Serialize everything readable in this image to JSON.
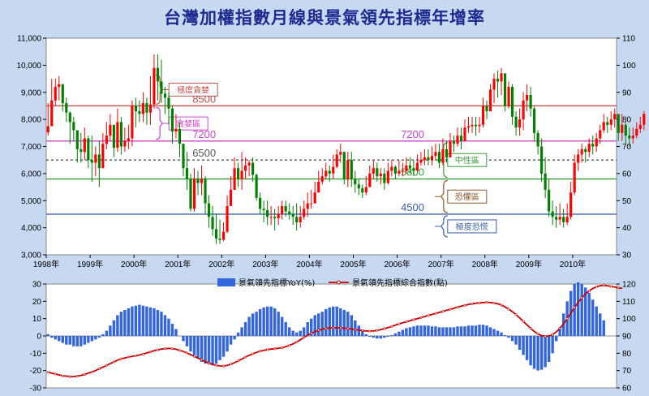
{
  "title": "台灣加權指數月線與景氣領先指標年增率",
  "colors": {
    "background": "#c6d9f1",
    "plot_bg": "#ffffff",
    "up_candle": "#ff0000",
    "down_candle": "#008000",
    "line_8500": "#c0504d",
    "line_7200": "#cc44cc",
    "line_6500": "#555555",
    "line_5800": "#3a9a3a",
    "line_4500": "#3b5ea8",
    "bar": "#3366dd",
    "composite": "#cc0000"
  },
  "chart_data": [
    {
      "type": "candlestick",
      "left_axis": {
        "range": [
          3000,
          11000
        ],
        "ticks": [
          "3,000",
          "4,000",
          "5,000",
          "6,000",
          "7,000",
          "8,000",
          "9,000",
          "10,000",
          "11,000"
        ]
      },
      "right_axis": {
        "range": [
          30,
          110
        ],
        "ticks": [
          "30",
          "40",
          "50",
          "60",
          "70",
          "80",
          "90",
          "100",
          "110"
        ]
      },
      "x_ticks": [
        "1998年",
        "1999年",
        "2000年",
        "2001年",
        "2002年",
        "2003年",
        "2004年",
        "2005年",
        "2006年",
        "2007年",
        "2008年",
        "2009年",
        "2010年"
      ],
      "x_range": [
        1998,
        2011
      ],
      "levels": [
        {
          "value": 8500,
          "label": "8500",
          "color_key": "line_8500",
          "dashed": false,
          "label_x": 2001.6
        },
        {
          "value": 7200,
          "label": "7200",
          "color_key": "line_7200",
          "dashed": false,
          "label_x": 2001.6
        },
        {
          "value": 7200,
          "label": "7200",
          "color_key": "line_7200",
          "dashed": false,
          "label_x": 2006.35
        },
        {
          "value": 6500,
          "label": "6500",
          "color_key": "line_6500",
          "dashed": true,
          "label_x": 2001.6
        },
        {
          "value": 5800,
          "label": "5800",
          "color_key": "line_5800",
          "dashed": false,
          "label_x": 2006.35
        },
        {
          "value": 4500,
          "label": "4500",
          "color_key": "line_4500",
          "dashed": false,
          "label_x": 2006.35
        }
      ],
      "zones": [
        {
          "label": "極度貪婪",
          "from": 8500,
          "to": 9700,
          "color": "#c0504d",
          "side": "left",
          "x": 2000.5
        },
        {
          "label": "貪婪區",
          "from": 7200,
          "to": 8500,
          "color": "#cc44cc",
          "side": "left",
          "x": 2000.5
        },
        {
          "label": "中性區",
          "from": 5800,
          "to": 7200,
          "color": "#3a9a3a",
          "side": "right",
          "x": 2007.15
        },
        {
          "label": "恐懼區",
          "from": 4500,
          "to": 5800,
          "color": "#8b5a2b",
          "side": "right",
          "x": 2007.15
        },
        {
          "label": "極度恐慌",
          "from": 3600,
          "to": 4500,
          "color": "#3b5ea8",
          "side": "right",
          "x": 2007.15
        }
      ],
      "monthly_close": [
        7750,
        8700,
        9200,
        9300,
        8600,
        8250,
        7900,
        7600,
        6900,
        6800,
        7300,
        6500,
        6400,
        6700,
        6200,
        7100,
        7400,
        7800,
        6950,
        7900,
        7000,
        7200,
        7300,
        8500,
        8300,
        8200,
        8600,
        8250,
        8550,
        9900,
        9400,
        8950,
        8800,
        8400,
        7550,
        7650,
        7100,
        6200,
        5800,
        4700,
        5800,
        5650,
        5800,
        4900,
        4400,
        3950,
        3600,
        3550,
        3850,
        4800,
        5400,
        6200,
        5800,
        6100,
        6300,
        6400,
        5950,
        5100,
        4700,
        4650,
        4400,
        4400,
        4350,
        4500,
        4800,
        4600,
        4500,
        4400,
        4200,
        4400,
        4700,
        4900,
        4900,
        5300,
        5700,
        5900,
        6100,
        6000,
        6250,
        6700,
        6800,
        5800,
        6500,
        5800,
        5600,
        5450,
        5300,
        5500,
        6000,
        6200,
        5900,
        6000,
        5650,
        6100,
        6250,
        6000,
        6100,
        6100,
        6300,
        6200,
        6100,
        6400,
        6500,
        6600,
        6500,
        6650,
        6800,
        6400,
        6900,
        6600,
        7200,
        7100,
        7400,
        7200,
        7700,
        7750,
        7800,
        7750,
        7800,
        8500,
        8300,
        9100,
        9500,
        9400,
        9700,
        8500,
        9200,
        8100,
        7700,
        8000,
        8700,
        8900,
        8400,
        7500,
        7000,
        6000,
        5400,
        4600,
        4400,
        4300,
        4400,
        4200,
        4400,
        5300,
        6400,
        6700,
        6900,
        6800,
        7100,
        7000,
        7300,
        7600,
        7900,
        7800,
        8000,
        8200,
        7500,
        7800,
        7400,
        7300,
        7400,
        7650,
        7800,
        8200
      ],
      "monthly_high": [
        8600,
        9500,
        9500,
        9600,
        9300,
        8800,
        8300,
        8100,
        7500,
        7500,
        7700,
        7400,
        7400,
        7000,
        7200,
        7500,
        7900,
        8200,
        7800,
        8400,
        8100,
        7700,
        7800,
        8700,
        8800,
        8700,
        9000,
        8800,
        9600,
        10400,
        10400,
        10200,
        9200,
        9000,
        8500,
        8200,
        7900,
        7100,
        6800,
        6000,
        6200,
        6100,
        6300,
        5900,
        5200,
        4800,
        4500,
        4300,
        4200,
        5200,
        5900,
        6600,
        6400,
        6800,
        6600,
        6500,
        6600,
        6000,
        5300,
        5000,
        5000,
        4800,
        4700,
        4800,
        5000,
        5000,
        4900,
        4800,
        4900,
        4800,
        5000,
        5300,
        5400,
        5700,
        6100,
        6200,
        6400,
        6300,
        6700,
        6900,
        7100,
        6800,
        6800,
        6800,
        6100,
        5800,
        5600,
        5900,
        6300,
        6500,
        6400,
        6200,
        6200,
        6400,
        6500,
        6300,
        6500,
        6400,
        6600,
        6600,
        6500,
        6700,
        6800,
        6900,
        6900,
        7000,
        7100,
        7100,
        7300,
        7200,
        7500,
        7400,
        7700,
        7700,
        8000,
        8100,
        8100,
        8100,
        8100,
        8800,
        8700,
        9300,
        9700,
        9800,
        9900,
        9600,
        9400,
        9300,
        8300,
        8400,
        9000,
        9300,
        9200,
        8500,
        7600,
        7300,
        6600,
        5800,
        5000,
        4800,
        4900,
        4700,
        4900,
        5700,
        6700,
        6900,
        7100,
        7000,
        7300,
        7400,
        7500,
        7800,
        8200,
        8100,
        8300,
        8400,
        8200,
        8200,
        7900,
        7700,
        7700,
        7900,
        8100,
        8300
      ],
      "monthly_low": [
        7400,
        8200,
        8500,
        8700,
        8300,
        7900,
        7100,
        7200,
        6400,
        6400,
        6500,
        6200,
        5700,
        5900,
        5500,
        6200,
        6900,
        7200,
        6600,
        6800,
        6700,
        6800,
        6900,
        7000,
        7700,
        7900,
        7900,
        7800,
        7800,
        8400,
        8700,
        8600,
        8200,
        7800,
        7100,
        7300,
        6600,
        5900,
        5400,
        4600,
        4600,
        5200,
        5200,
        4500,
        4000,
        3700,
        3400,
        3400,
        3500,
        3800,
        4800,
        5400,
        5500,
        5400,
        5800,
        5900,
        5700,
        5000,
        4500,
        4200,
        4100,
        4100,
        3900,
        4100,
        4300,
        4400,
        4300,
        4100,
        3900,
        4000,
        4300,
        4400,
        4700,
        5000,
        5300,
        5600,
        5800,
        5700,
        5800,
        6200,
        6400,
        5600,
        5500,
        5500,
        5300,
        5200,
        5100,
        5200,
        5500,
        5800,
        5700,
        5600,
        5400,
        5600,
        5900,
        5800,
        5900,
        5900,
        6000,
        6000,
        5900,
        6100,
        6300,
        6300,
        6300,
        6300,
        6500,
        6200,
        6300,
        6400,
        6800,
        6800,
        7000,
        6900,
        7200,
        7500,
        7500,
        7400,
        7500,
        7700,
        8000,
        8300,
        8600,
        8800,
        8900,
        8300,
        8400,
        7800,
        7400,
        7400,
        7600,
        8300,
        8100,
        7200,
        6700,
        5700,
        5100,
        4400,
        4100,
        4000,
        4100,
        4000,
        4100,
        4300,
        5200,
        6100,
        6400,
        6400,
        6600,
        6700,
        6800,
        7100,
        7500,
        7500,
        7600,
        7700,
        7200,
        7200,
        7100,
        7000,
        7100,
        7300,
        7500,
        7600
      ]
    },
    {
      "type": "bar+line",
      "x_range": [
        1998,
        2011
      ],
      "left_axis": {
        "range": [
          -30,
          30
        ],
        "ticks": [
          "-30",
          "-20",
          "-10",
          "0",
          "10",
          "20",
          "30"
        ]
      },
      "right_axis": {
        "range": [
          60,
          120
        ],
        "ticks": [
          "60",
          "70",
          "80",
          "90",
          "100",
          "110",
          "120"
        ]
      },
      "series": [
        {
          "name": "景氣領先指標YoY(%)",
          "kind": "bar",
          "color_key": "bar",
          "values": [
            1,
            -1,
            -2,
            -3,
            -4,
            -5,
            -5,
            -6,
            -6,
            -6,
            -5,
            -4,
            -3,
            -2,
            -1,
            1,
            3,
            6,
            9,
            12,
            14,
            15,
            16,
            17,
            17.5,
            18,
            17.5,
            17,
            16.5,
            16,
            15,
            14,
            12,
            10,
            7,
            4,
            0,
            -3,
            -6,
            -9,
            -11,
            -13,
            -15,
            -16,
            -16.5,
            -17,
            -16,
            -14,
            -12,
            -9,
            -5,
            -2,
            2,
            5,
            8,
            11,
            13,
            14,
            15.5,
            16.5,
            17,
            17,
            16,
            14,
            11,
            8,
            5,
            3,
            2,
            3,
            5,
            8,
            10,
            12,
            13,
            14,
            15.5,
            16.5,
            17,
            17,
            16,
            15,
            14,
            12,
            9,
            6,
            3,
            1,
            -0.5,
            -1,
            -1.5,
            -1.5,
            -1,
            -0.5,
            0.5,
            1.5,
            2.5,
            3.5,
            4.5,
            5,
            5.5,
            6,
            6,
            6,
            6,
            5.5,
            5.5,
            5,
            5,
            5,
            5,
            5,
            5.5,
            5.5,
            5.5,
            6,
            6,
            6,
            6.5,
            6.5,
            6,
            5,
            4,
            3,
            2,
            0.5,
            -1,
            -3,
            -5,
            -8,
            -11,
            -14,
            -17,
            -19,
            -20,
            -19.5,
            -18,
            -15,
            -10,
            -3,
            5,
            13,
            20,
            26,
            30,
            31,
            30,
            28,
            25,
            21,
            17,
            13,
            9,
            0,
            0,
            0,
            0
          ]
        },
        {
          "name": "景氣領先指標綜合指數(點)",
          "kind": "line",
          "color_key": "composite",
          "values": [
            69,
            68.5,
            68,
            67.5,
            67,
            66.8,
            66.5,
            66.5,
            66.8,
            67.2,
            67.8,
            68.5,
            69.2,
            70,
            71,
            72,
            73,
            74,
            75,
            76,
            76.8,
            77.3,
            77.8,
            78.2,
            78.6,
            79,
            79.5,
            80.2,
            80.8,
            81.5,
            82,
            82.4,
            82.7,
            82.8,
            82.7,
            82.3,
            81.7,
            81,
            80.2,
            79.2,
            78.2,
            77.2,
            76.2,
            75.2,
            74.3,
            73.6,
            73,
            72.7,
            72.6,
            73,
            73.7,
            74.6,
            75.6,
            76.7,
            77.8,
            78.8,
            79.7,
            80.5,
            81.2,
            81.7,
            82.1,
            82.4,
            82.6,
            82.9,
            83.2,
            83.8,
            84.5,
            85.4,
            86.5,
            87.8,
            89.1,
            90.4,
            91.5,
            92.5,
            93.3,
            93.9,
            94.3,
            94.6,
            94.7,
            94.7,
            94.6,
            94.5,
            94.3,
            94,
            93.7,
            93.4,
            93.1,
            92.9,
            92.8,
            92.9,
            93.2,
            93.6,
            94.2,
            94.8,
            95.5,
            96.3,
            97,
            97.6,
            98.2,
            98.8,
            99.4,
            100,
            100.6,
            101.2,
            101.8,
            102.4,
            103,
            103.6,
            104.2,
            104.8,
            105.4,
            106,
            106.6,
            107.2,
            107.7,
            108.2,
            108.6,
            108.9,
            109.1,
            109.3,
            109.4,
            109.3,
            109,
            108.6,
            107.8,
            106.8,
            105.5,
            104,
            102.3,
            100.4,
            98.4,
            96.4,
            94.4,
            92.6,
            91.2,
            90.2,
            89.8,
            90,
            90.8,
            92.3,
            94.4,
            97,
            100,
            103.2,
            106.4,
            109.4,
            112,
            114.2,
            116,
            117.4,
            118.4,
            119,
            119.2,
            119,
            118.6,
            118.2,
            117.8,
            117.5
          ]
        }
      ]
    }
  ]
}
